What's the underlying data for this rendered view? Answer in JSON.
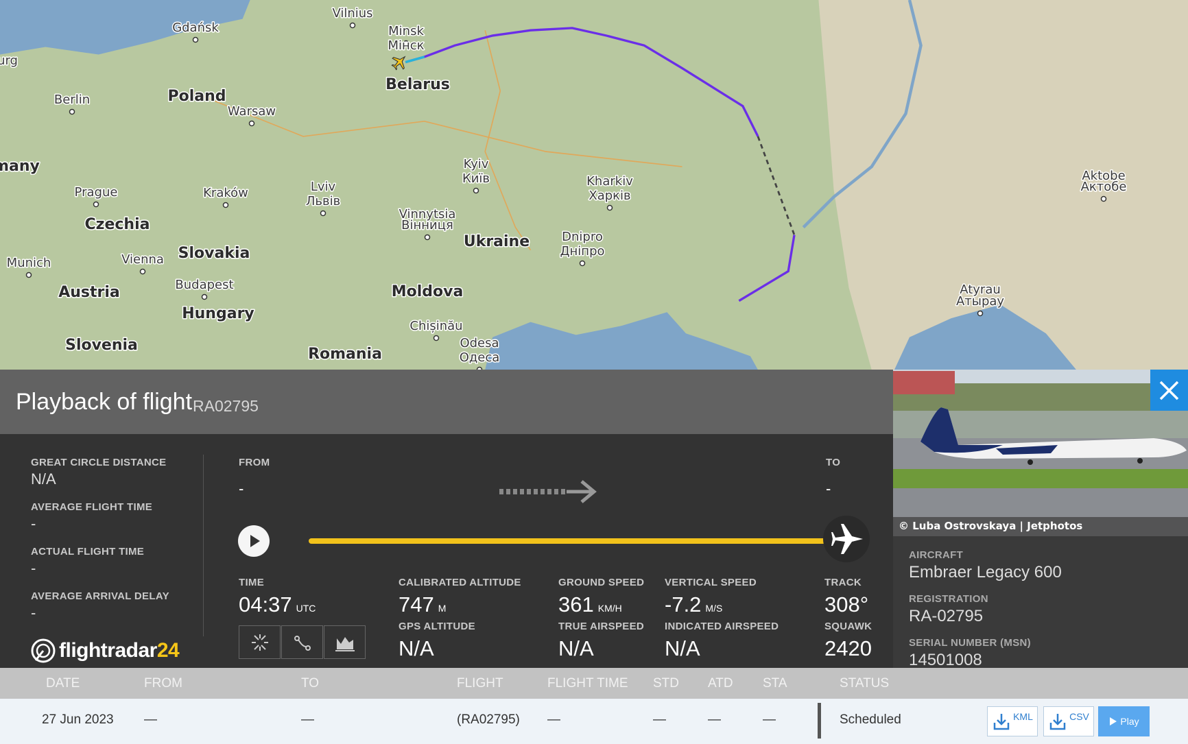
{
  "map": {
    "labels": [
      "urg",
      "Vilnius",
      "Gdańsk",
      "Minsk",
      "Мінск",
      "Belarus",
      "Berlin",
      "Poland",
      "Warsaw",
      "many",
      "Prague",
      "Kraków",
      "Lviv",
      "Львів",
      "Kyiv",
      "Київ",
      "Kharkiv",
      "Харків",
      "Vinnytsia",
      "Вінниця",
      "Czechia",
      "Slovakia",
      "Ukraine",
      "Dnipro",
      "Дніпро",
      "Munich",
      "Vienna",
      "Budapest",
      "Austria",
      "Hungary",
      "Moldova",
      "Chișinău",
      "Odesa",
      "Одеса",
      "Slovenia",
      "Romania",
      "Aktobe",
      "Актобе",
      "Atyrau",
      "Атырау"
    ]
  },
  "header": {
    "title": "Playback of flight",
    "flight": "RA02795"
  },
  "summary": [
    {
      "label": "GREAT CIRCLE DISTANCE",
      "value": "N/A"
    },
    {
      "label": "AVERAGE FLIGHT TIME",
      "value": "-"
    },
    {
      "label": "ACTUAL FLIGHT TIME",
      "value": "-"
    },
    {
      "label": "AVERAGE ARRIVAL DELAY",
      "value": "-"
    }
  ],
  "logo": {
    "name": "flightradar",
    "number": "24"
  },
  "route": {
    "from_label": "FROM",
    "from": "-",
    "to_label": "TO",
    "to": "-"
  },
  "stats": [
    {
      "label": "TIME",
      "value": "04:37",
      "unit": "UTC"
    },
    {
      "label": "CALIBRATED ALTITUDE",
      "value": "747",
      "unit": "M"
    },
    {
      "label": "GROUND SPEED",
      "value": "361",
      "unit": "KM/H"
    },
    {
      "label": "VERTICAL SPEED",
      "value": "-7.2",
      "unit": "M/S"
    },
    {
      "label": "TRACK",
      "value": "308°"
    },
    {
      "label": "GPS ALTITUDE",
      "value": "N/A"
    },
    {
      "label": "TRUE AIRSPEED",
      "value": "N/A"
    },
    {
      "label": "INDICATED AIRSPEED",
      "value": "N/A"
    },
    {
      "label": "SQUAWK",
      "value": "2420"
    }
  ],
  "photo": {
    "credit": "© Luba Ostrovskaya | Jetphotos"
  },
  "aircraft": [
    {
      "label": "AIRCRAFT",
      "value": "Embraer Legacy 600"
    },
    {
      "label": "REGISTRATION",
      "value": "RA-02795"
    },
    {
      "label": "SERIAL NUMBER (MSN)",
      "value": "14501008"
    }
  ],
  "table": {
    "columns": [
      "DATE",
      "FROM",
      "TO",
      "FLIGHT",
      "FLIGHT TIME",
      "STD",
      "ATD",
      "STA",
      "STATUS"
    ],
    "rows": [
      [
        "27 Jun 2023",
        "—",
        "—",
        "(RA02795)",
        "—",
        "—",
        "—",
        "—",
        "Scheduled"
      ]
    ]
  },
  "buttons": [
    "KML",
    "CSV",
    "Play"
  ]
}
